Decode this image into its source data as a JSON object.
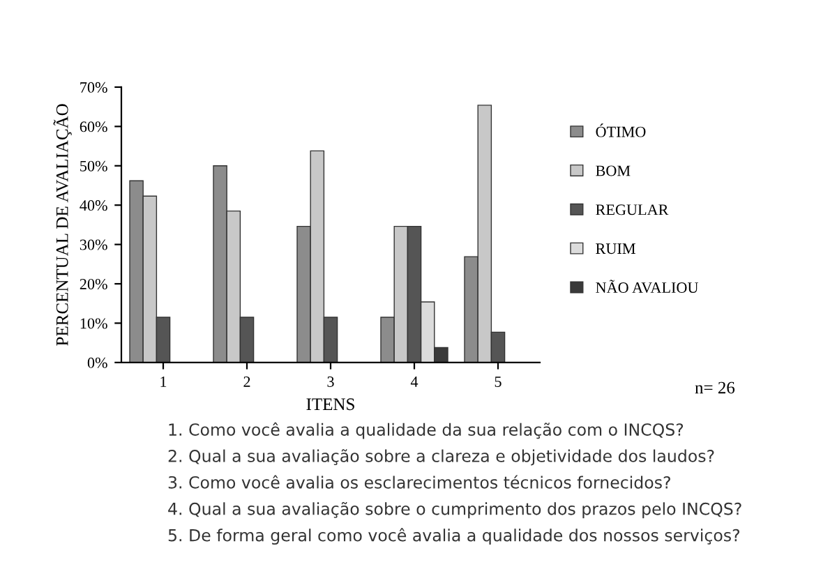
{
  "chart_data": {
    "type": "bar",
    "xlabel": "ITENS",
    "ylabel": "PERCENTUAL DE AVALIAÇÃO",
    "categories": [
      "1",
      "2",
      "3",
      "4",
      "5"
    ],
    "series": [
      {
        "name": "ÓTIMO",
        "color": "#8c8c8c",
        "values": [
          46.2,
          50.0,
          34.6,
          11.5,
          26.9
        ]
      },
      {
        "name": "BOM",
        "color": "#c8c8c8",
        "values": [
          42.3,
          38.5,
          53.8,
          34.6,
          65.4
        ]
      },
      {
        "name": "REGULAR",
        "color": "#555555",
        "values": [
          11.5,
          11.5,
          11.5,
          34.6,
          7.7
        ]
      },
      {
        "name": "RUIM",
        "color": "#dcdcdc",
        "values": [
          0,
          0,
          0,
          15.4,
          0
        ]
      },
      {
        "name": "NÃO AVALIOU",
        "color": "#3a3a3a",
        "values": [
          0,
          0,
          0,
          3.8,
          0
        ]
      }
    ],
    "ylim": [
      0,
      70
    ],
    "yticks": [
      {
        "value": 0,
        "label": "0%"
      },
      {
        "value": 10,
        "label": "10%"
      },
      {
        "value": 20,
        "label": "20%"
      },
      {
        "value": 30,
        "label": "30%"
      },
      {
        "value": 40,
        "label": "40%"
      },
      {
        "value": 50,
        "label": "50%"
      },
      {
        "value": 60,
        "label": "60%"
      },
      {
        "value": 70,
        "label": "70%"
      }
    ],
    "grid": false,
    "legend": "right",
    "annotations": [
      "n= 26",
      "1. Como você avalia a qualidade da sua relação com o INCQS?",
      "2. Qual a sua avaliação sobre a clareza e objetividade dos laudos?",
      "3. Como você avalia os esclarecimentos técnicos fornecidos?",
      "4. Qual a sua avaliação sobre o cumprimento dos prazos pelo INCQS?",
      "5. De forma geral como você avalia a qualidade dos nossos serviços?"
    ]
  }
}
